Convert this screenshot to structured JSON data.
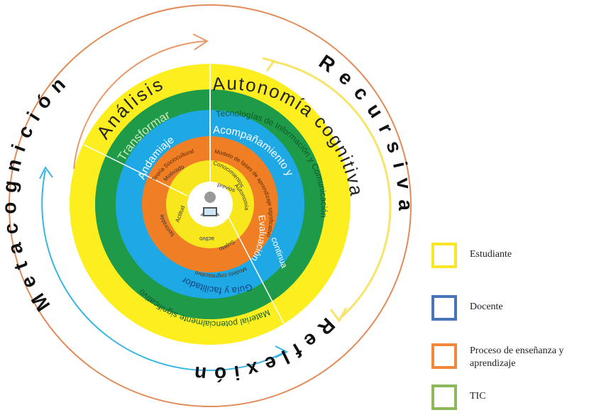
{
  "outer_words": {
    "metacognicion": "Metacognición",
    "recursiva": "Recursiva",
    "reflexion": "Reflexión"
  },
  "stages": {
    "analisis": "Análisis",
    "autonomia": "Autonomía cognitiva",
    "transformar": "Transformar",
    "tecnologias": "Tecnologías de Información y Comunicación",
    "andamiaje": "Andamiaje",
    "acompanamiento": "Acompañamiento y",
    "evaluacion": "Evaluación",
    "continua": "continua",
    "material": "Material potencialmente significativo",
    "guia": "Guía y facilitador",
    "teoria": "Teoría Sociocultural",
    "modelo_fases": "Modelo de fases de aprendizaje significativo",
    "modelo_cognoscitivo": "Modelo cognoscitivo",
    "conocimientos": "Conocimientos",
    "previos": "previos",
    "motivado": "Motivado",
    "actitud": "Actitud",
    "favorable": "favorable",
    "sujeto": "Sujeto",
    "activo": "activo",
    "autonomia_inner": "Autonomía"
  },
  "legend": [
    {
      "label": "Estudiante",
      "color": "#f9e625"
    },
    {
      "label": "Docente",
      "color": "#4a74b8"
    },
    {
      "label": "Proceso de enseñanza y aprendizaje",
      "color": "#f0873a"
    },
    {
      "label": "TIC",
      "color": "#8db85a"
    }
  ],
  "colors": {
    "yellow": "#fdef1f",
    "green": "#1f9a49",
    "blue": "#1fa8e6",
    "orange": "#ef7e25",
    "inner_yellow": "#f8e71c",
    "outer_ring": "#e08b58",
    "arrow_orange": "#e89a6a",
    "arrow_yellow": "#f7e46a",
    "arrow_blue": "#35b6e4"
  }
}
